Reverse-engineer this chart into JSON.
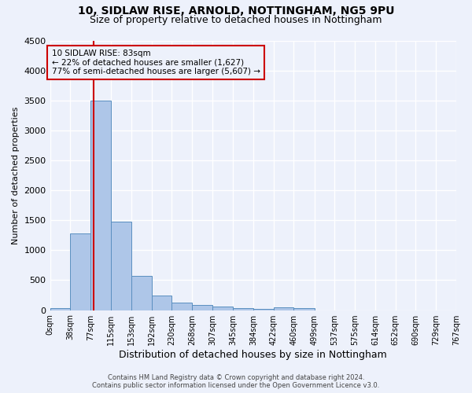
{
  "title1": "10, SIDLAW RISE, ARNOLD, NOTTINGHAM, NG5 9PU",
  "title2": "Size of property relative to detached houses in Nottingham",
  "xlabel": "Distribution of detached houses by size in Nottingham",
  "ylabel": "Number of detached properties",
  "footer1": "Contains HM Land Registry data © Crown copyright and database right 2024.",
  "footer2": "Contains public sector information licensed under the Open Government Licence v3.0.",
  "property_label": "10 SIDLAW RISE: 83sqm",
  "annotation_line1": "← 22% of detached houses are smaller (1,627)",
  "annotation_line2": "77% of semi-detached houses are larger (5,607) →",
  "bar_edges": [
    0,
    38,
    77,
    115,
    153,
    192,
    230,
    268,
    307,
    345,
    384,
    422,
    460,
    499,
    537,
    575,
    614,
    652,
    690,
    729,
    767
  ],
  "bar_heights": [
    30,
    1280,
    3500,
    1480,
    575,
    250,
    130,
    90,
    55,
    30,
    25,
    50,
    30,
    0,
    0,
    0,
    0,
    0,
    0,
    0
  ],
  "bar_color": "#aec6e8",
  "bar_edgecolor": "#5a8fc0",
  "vline_color": "#cc0000",
  "vline_x": 83,
  "annotation_box_color": "#cc0000",
  "ylim": [
    0,
    4500
  ],
  "yticks": [
    0,
    500,
    1000,
    1500,
    2000,
    2500,
    3000,
    3500,
    4000,
    4500
  ],
  "background_color": "#edf1fb",
  "grid_color": "#ffffff",
  "tick_labels": [
    "0sqm",
    "38sqm",
    "77sqm",
    "115sqm",
    "153sqm",
    "192sqm",
    "230sqm",
    "268sqm",
    "307sqm",
    "345sqm",
    "384sqm",
    "422sqm",
    "460sqm",
    "499sqm",
    "537sqm",
    "575sqm",
    "614sqm",
    "652sqm",
    "690sqm",
    "729sqm",
    "767sqm"
  ],
  "title1_fontsize": 10,
  "title2_fontsize": 9,
  "ylabel_fontsize": 8,
  "xlabel_fontsize": 9
}
